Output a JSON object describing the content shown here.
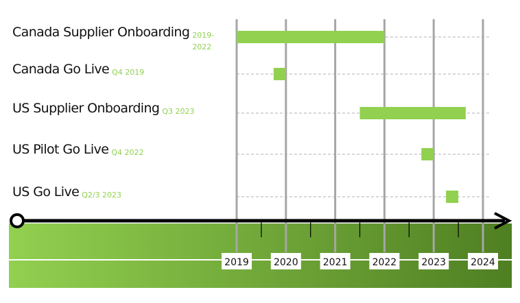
{
  "chart_data": {
    "type": "gantt",
    "title": "",
    "x_axis": {
      "tick_labels": [
        "2019",
        "2020",
        "2021",
        "2022",
        "2023",
        "2024"
      ],
      "range": [
        2019,
        2024
      ]
    },
    "tasks": [
      {
        "label": "Canada Supplier Onboarding",
        "note": [
          "2019-",
          "2022"
        ],
        "start": 2019.0,
        "end": 2022.0
      },
      {
        "label": "Canada Go Live",
        "note": [
          "Q4 2019"
        ],
        "start": 2019.75,
        "end": 2020.0
      },
      {
        "label": "US Supplier Onboarding",
        "note": [
          "Q3 2023"
        ],
        "start": 2021.5,
        "end": 2023.65
      },
      {
        "label": "US Pilot Go Live",
        "note": [
          "Q4 2022"
        ],
        "start": 2022.75,
        "end": 2023.0
      },
      {
        "label": "US Go Live",
        "note": [
          "Q2/3 2023"
        ],
        "start": 2023.25,
        "end": 2023.5
      }
    ],
    "grid": true
  },
  "colors": {
    "bar": "#92d050",
    "note_text": "#8fd14f",
    "gridline": "#a6a6a6",
    "band_light": "#92d050",
    "band_dark": "#4f7f22",
    "axis": "#000000"
  }
}
